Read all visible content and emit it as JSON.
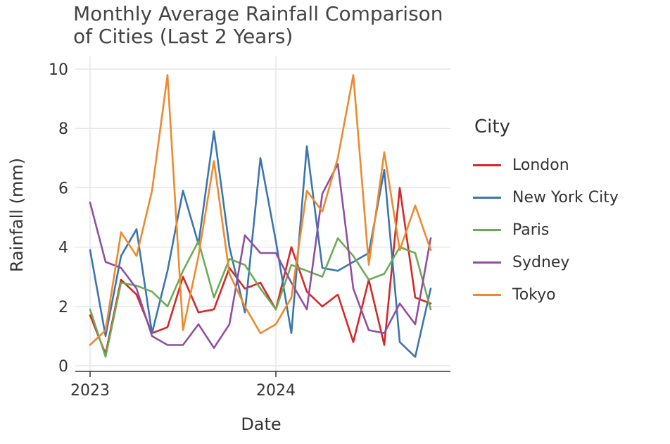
{
  "chart_data": {
    "type": "line",
    "title": "Monthly Average Rainfall Comparison\nof Cities (Last 2 Years)",
    "xlabel": "Date",
    "ylabel": "Rainfall (mm)",
    "legend_title": "City",
    "legend_position": "right",
    "grid": true,
    "x": [
      "2023-01",
      "2023-02",
      "2023-03",
      "2023-04",
      "2023-05",
      "2023-06",
      "2023-07",
      "2023-08",
      "2023-09",
      "2023-10",
      "2023-11",
      "2023-12",
      "2024-01",
      "2024-02",
      "2024-03",
      "2024-04",
      "2024-05",
      "2024-06",
      "2024-07",
      "2024-08",
      "2024-09",
      "2024-10",
      "2024-11",
      "2024-12"
    ],
    "x_ticks": [
      "2023",
      "2024"
    ],
    "y_ticks": [
      "0",
      "2",
      "4",
      "6",
      "8",
      "10"
    ],
    "ylim": [
      0,
      10
    ],
    "series": [
      {
        "name": "London",
        "color": "#d62728",
        "values": [
          1.7,
          0.4,
          2.9,
          2.4,
          1.1,
          1.3,
          3.0,
          1.8,
          1.9,
          3.3,
          2.6,
          2.8,
          1.9,
          4.0,
          2.5,
          2.0,
          2.4,
          0.8,
          2.9,
          0.7,
          6.0,
          2.3,
          2.1,
          null
        ]
      },
      {
        "name": "New York City",
        "color": "#3b75af",
        "values": [
          3.9,
          1.0,
          3.7,
          4.6,
          1.1,
          3.2,
          5.9,
          4.1,
          7.9,
          4.0,
          1.8,
          7.0,
          4.2,
          1.1,
          7.4,
          3.3,
          3.2,
          3.5,
          3.8,
          6.6,
          0.8,
          0.3,
          2.6,
          null
        ]
      },
      {
        "name": "Paris",
        "color": "#6bab56",
        "values": [
          1.9,
          0.3,
          2.8,
          2.7,
          2.5,
          2.0,
          3.2,
          4.2,
          2.3,
          3.6,
          3.4,
          2.6,
          1.9,
          3.4,
          3.2,
          3.0,
          4.3,
          3.7,
          2.9,
          3.1,
          4.0,
          3.8,
          1.9,
          null
        ]
      },
      {
        "name": "Sydney",
        "color": "#8e4fa0",
        "values": [
          5.5,
          3.5,
          3.3,
          2.6,
          1.0,
          0.7,
          0.7,
          1.4,
          0.6,
          1.4,
          4.4,
          3.8,
          3.8,
          2.8,
          1.9,
          5.8,
          6.8,
          2.6,
          1.2,
          1.1,
          2.1,
          1.4,
          4.3,
          null
        ]
      },
      {
        "name": "Tokyo",
        "color": "#ee8a2e",
        "values": [
          0.7,
          1.2,
          4.5,
          3.7,
          5.9,
          9.8,
          1.2,
          3.7,
          6.9,
          3.1,
          2.0,
          1.1,
          1.4,
          2.3,
          5.9,
          5.2,
          7.0,
          9.8,
          3.4,
          7.2,
          3.9,
          5.4,
          3.9,
          null
        ]
      }
    ]
  }
}
